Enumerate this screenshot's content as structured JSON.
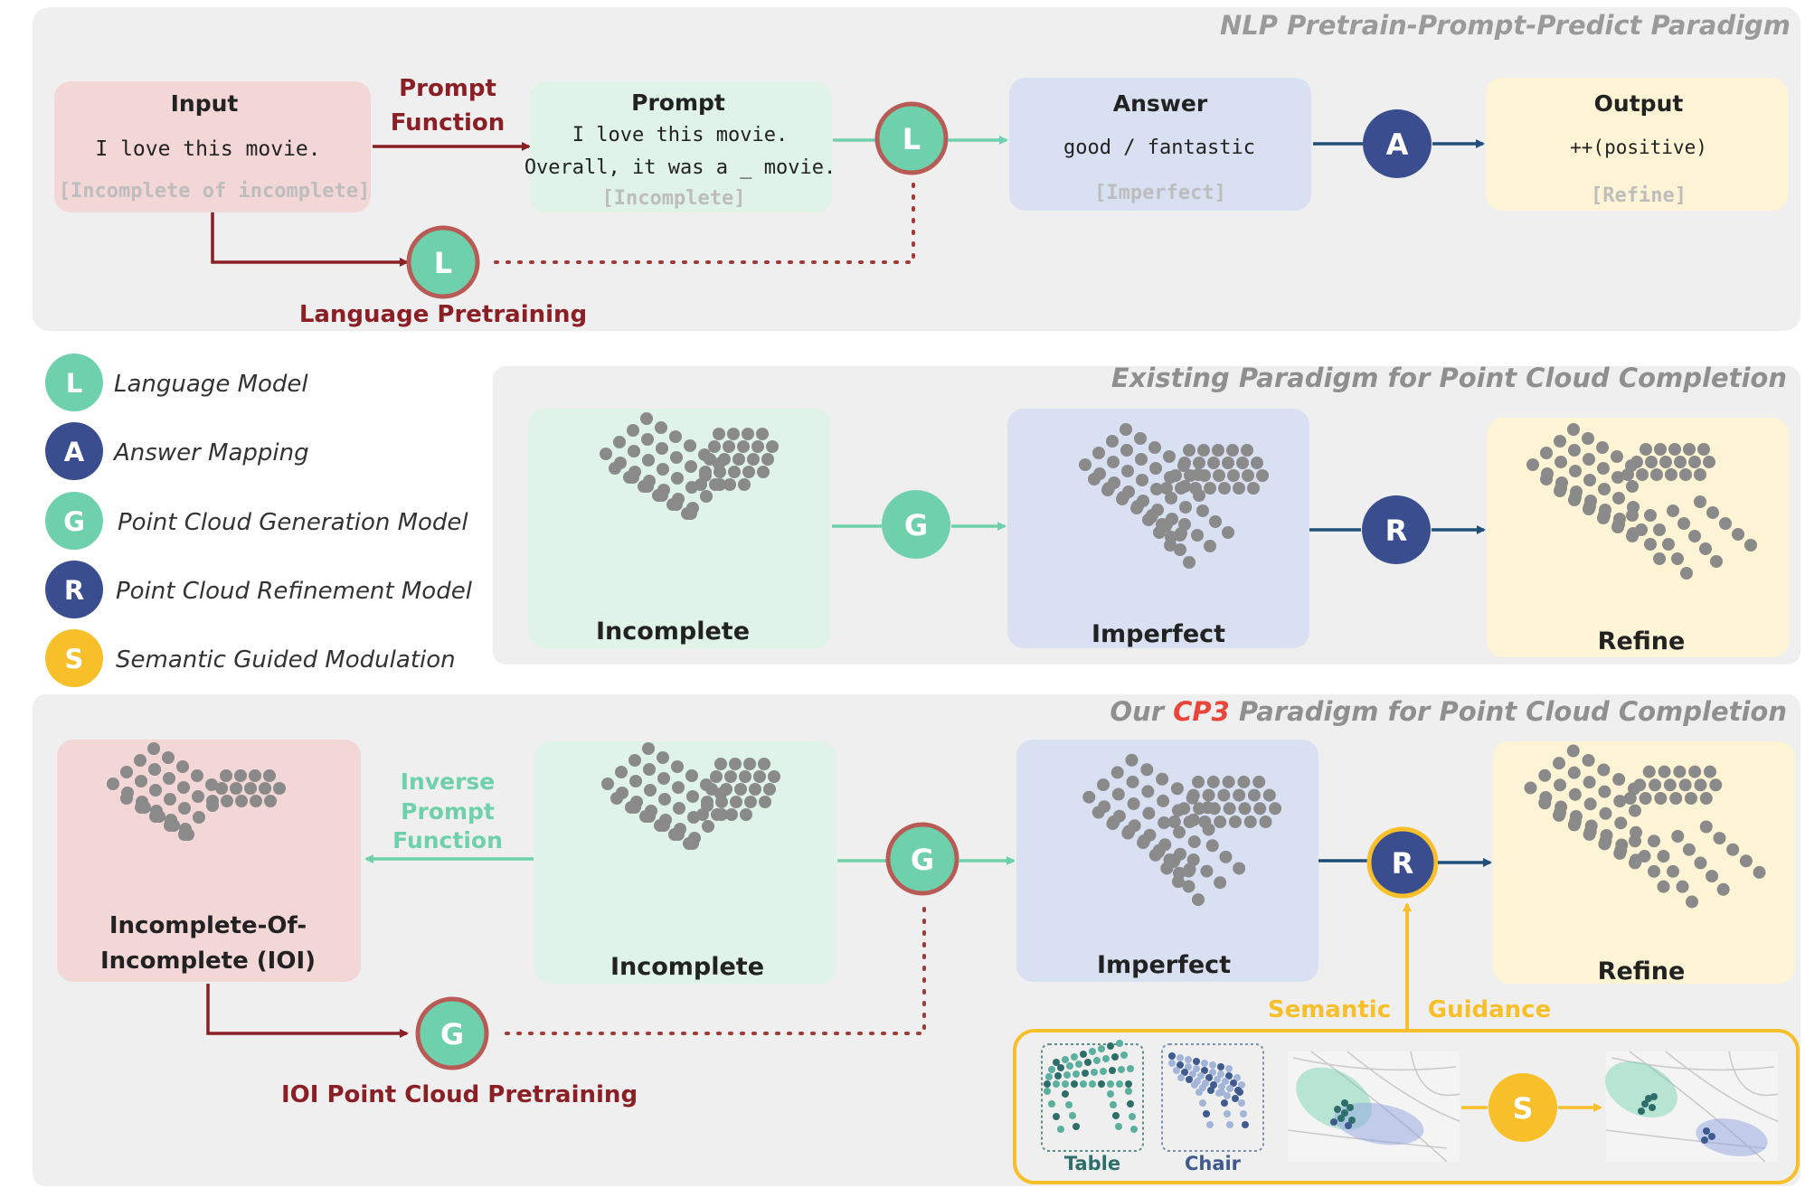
{
  "panels": {
    "nlp": {
      "title": "NLP  Pretrain-Prompt-Predict Paradigm",
      "input": {
        "title": "Input",
        "text": "I love this movie.",
        "tag": "[Incomplete of incomplete]"
      },
      "prompt_function": {
        "line1": "Prompt",
        "line2": "Function"
      },
      "prompt": {
        "title": "Prompt",
        "line1": "I love this movie.",
        "line2": "Overall, it was a _ movie.",
        "tag": "[Incomplete]"
      },
      "answer": {
        "title": "Answer",
        "text": "good / fantastic",
        "tag": "[Imperfect]"
      },
      "output": {
        "title": "Output",
        "text": "++(positive)",
        "tag": "[Refine]"
      },
      "pretraining": "Language Pretraining"
    },
    "existing": {
      "title": "Existing Paradigm for Point Cloud Completion",
      "incomplete": "Incomplete",
      "imperfect": "Imperfect",
      "refine": "Refine"
    },
    "ours": {
      "title_pre": "Our ",
      "title_em": "CP3",
      "title_post": " Paradigm for Point Cloud Completion",
      "ioi_line1": "Incomplete-Of-",
      "ioi_line2": "Incomplete (IOI)",
      "inverse_line1": "Inverse",
      "inverse_line2": "Prompt",
      "inverse_line3": "Function",
      "incomplete": "Incomplete",
      "imperfect": "Imperfect",
      "refine": "Refine",
      "pretraining": "IOI Point Cloud Pretraining",
      "semantic": "Semantic",
      "guidance": "Guidance",
      "table": "Table",
      "chair": "Chair"
    }
  },
  "nodes": {
    "L": "L",
    "A": "A",
    "G": "G",
    "R": "R",
    "S": "S"
  },
  "legend": [
    {
      "symbol": "L",
      "label": "Language Model",
      "color": "#6fd1ac"
    },
    {
      "symbol": "A",
      "label": "Answer Mapping",
      "color": "#3a4d8f"
    },
    {
      "symbol": "G",
      "label": "Point Cloud Generation Model",
      "color": "#6fd1ac"
    },
    {
      "symbol": "R",
      "label": "Point Cloud Refinement Model",
      "color": "#3a4d8f"
    },
    {
      "symbol": "S",
      "label": "Semantic Guided Modulation",
      "color": "#f7bf2a"
    }
  ],
  "colors": {
    "panel_bg": "#efefef",
    "red_box": "#f3d7d6",
    "green_box": "#dff3e8",
    "blue_box": "#d8e0f1",
    "yellow_box": "#fdf4d5",
    "dark_red": "#8b1f26",
    "teal": "#6fd1ac",
    "navy": "#3a4d8f",
    "gold": "#f7bf2a",
    "accent_red": "#e8463a",
    "point_gray": "#8a8a8a"
  }
}
